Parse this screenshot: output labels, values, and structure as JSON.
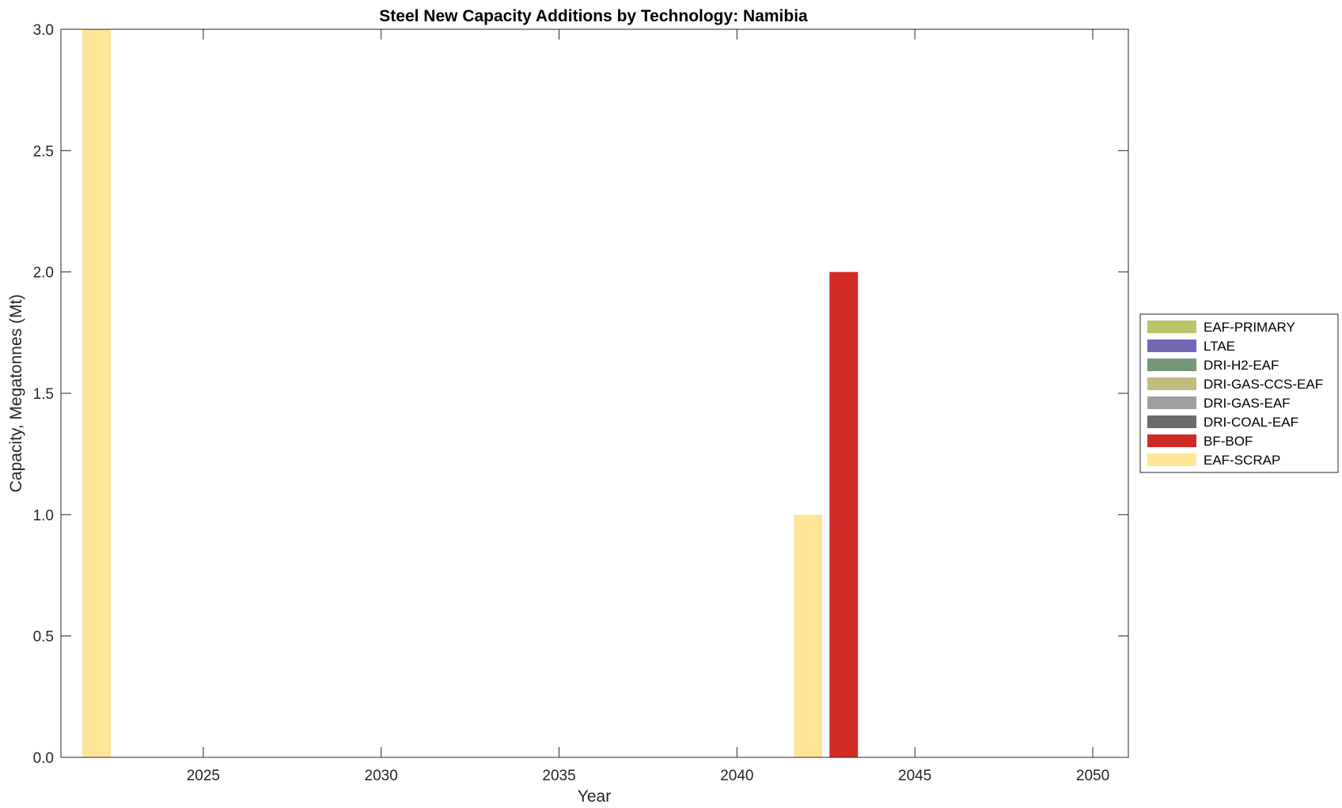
{
  "chart_data": {
    "type": "bar",
    "title": "Steel New Capacity Additions by Technology: Namibia",
    "xlabel": "Year",
    "ylabel": "Capacity, Megatonnes (Mt)",
    "xlim": [
      2021,
      2051
    ],
    "ylim": [
      0,
      3
    ],
    "x_ticks": [
      "2025",
      "2030",
      "2035",
      "2040",
      "2045",
      "2050"
    ],
    "y_ticks": [
      "0.0",
      "0.5",
      "1.0",
      "1.5",
      "2.0",
      "2.5",
      "3.0"
    ],
    "grid": false,
    "legend_position": "right",
    "series": [
      {
        "name": "EAF-PRIMARY",
        "color": "#bcc46a",
        "points": []
      },
      {
        "name": "LTAE",
        "color": "#7267b5",
        "points": []
      },
      {
        "name": "DRI-H2-EAF",
        "color": "#76977a",
        "points": []
      },
      {
        "name": "DRI-GAS-CCS-EAF",
        "color": "#c2bb7f",
        "points": []
      },
      {
        "name": "DRI-GAS-EAF",
        "color": "#9e9e9e",
        "points": []
      },
      {
        "name": "DRI-COAL-EAF",
        "color": "#6b6b6b",
        "points": []
      },
      {
        "name": "BF-BOF",
        "color": "#d12b26",
        "points": [
          {
            "x": 2043,
            "y": 2.0
          }
        ]
      },
      {
        "name": "EAF-SCRAP",
        "color": "#fee598",
        "points": [
          {
            "x": 2022,
            "y": 3.0
          },
          {
            "x": 2042,
            "y": 1.0
          }
        ]
      }
    ]
  }
}
